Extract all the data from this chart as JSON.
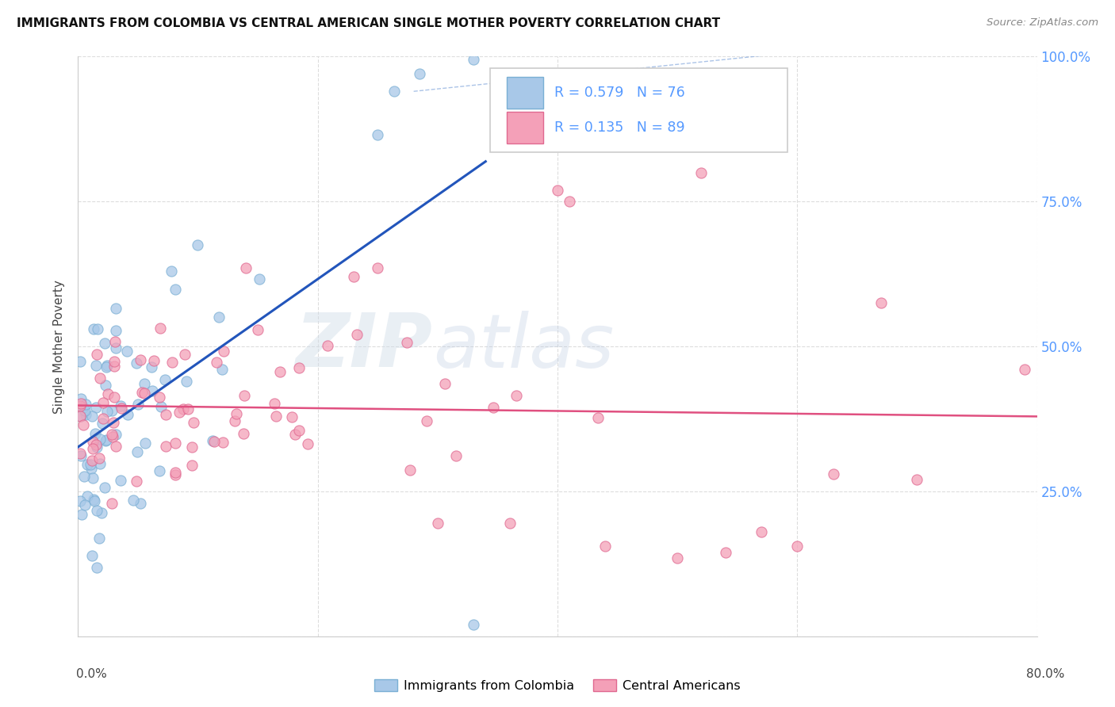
{
  "title": "IMMIGRANTS FROM COLOMBIA VS CENTRAL AMERICAN SINGLE MOTHER POVERTY CORRELATION CHART",
  "source": "Source: ZipAtlas.com",
  "ylabel": "Single Mother Poverty",
  "legend_label_1": "Immigrants from Colombia",
  "legend_label_2": "Central Americans",
  "R1": 0.579,
  "N1": 76,
  "R2": 0.135,
  "N2": 89,
  "color_blue": "#a8c8e8",
  "color_blue_edge": "#7aafd4",
  "color_pink": "#f4a0b8",
  "color_pink_edge": "#e06890",
  "color_line_blue": "#2255bb",
  "color_line_pink": "#e05080",
  "color_diag": "#88aadd",
  "watermark_zip": "ZIP",
  "watermark_atlas": "atlas",
  "xlim": [
    0.0,
    0.8
  ],
  "ylim": [
    0.0,
    1.0
  ],
  "xtick_labels": [
    "0.0%",
    "",
    "",
    "",
    "80.0%"
  ],
  "ytick_right_labels": [
    "25.0%",
    "50.0%",
    "75.0%",
    "100.0%"
  ],
  "ytick_right_color": "#5599ff"
}
